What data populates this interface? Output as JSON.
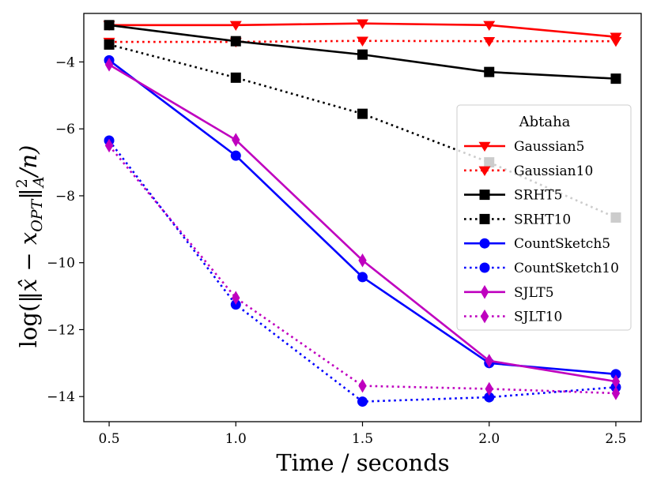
{
  "chart_data": {
    "type": "line",
    "title": "",
    "xlabel": "Time / seconds",
    "ylabel": "log(‖x̂ − x_OPT‖²_A / n)",
    "ylabel_parts": {
      "prefix": "log(‖",
      "xhat": "x̂",
      "minus": " − ",
      "x": "x",
      "sub": "OPT",
      "bar": "‖",
      "sup": "2",
      "subA": "A",
      "suffix": "/n)"
    },
    "x": [
      0.5,
      1.0,
      1.5,
      2.0,
      2.5
    ],
    "xlim": [
      0.4,
      2.6
    ],
    "ylim": [
      -14.75,
      -2.55
    ],
    "xticks": [
      0.5,
      1.0,
      1.5,
      2.0,
      2.5
    ],
    "xtick_labels": [
      "0.5",
      "1.0",
      "1.5",
      "2.0",
      "2.5"
    ],
    "yticks": [
      -4,
      -6,
      -8,
      -10,
      -12,
      -14
    ],
    "ytick_labels": [
      "−4",
      "−6",
      "−8",
      "−10",
      "−12",
      "−14"
    ],
    "legend": {
      "title": "Abtaha",
      "placement": "center-right"
    },
    "series": [
      {
        "name": "Gaussian5",
        "color": "#ff0000",
        "style": "solid",
        "marker": "triangle-down",
        "values": [
          -2.9,
          -2.9,
          -2.85,
          -2.9,
          -3.25
        ]
      },
      {
        "name": "Gaussian10",
        "color": "#ff0000",
        "style": "dotted",
        "marker": "triangle-down",
        "values": [
          -3.4,
          -3.4,
          -3.37,
          -3.38,
          -3.38
        ]
      },
      {
        "name": "SRHT5",
        "color": "#000000",
        "style": "solid",
        "marker": "square",
        "values": [
          -2.9,
          -3.38,
          -3.78,
          -4.3,
          -4.5
        ]
      },
      {
        "name": "SRHT10",
        "color": "#000000",
        "style": "dotted",
        "marker": "square",
        "values": [
          -3.48,
          -4.47,
          -5.55,
          -7.0,
          -8.65
        ]
      },
      {
        "name": "CountSketch5",
        "color": "#0000ff",
        "style": "solid",
        "marker": "circle",
        "values": [
          -3.95,
          -6.8,
          -10.43,
          -13.0,
          -13.33
        ]
      },
      {
        "name": "CountSketch10",
        "color": "#0000ff",
        "style": "dotted",
        "marker": "circle",
        "values": [
          -6.35,
          -11.25,
          -14.15,
          -14.02,
          -13.72
        ]
      },
      {
        "name": "SJLT5",
        "color": "#bf00bf",
        "style": "solid",
        "marker": "diamond",
        "values": [
          -4.08,
          -6.33,
          -9.93,
          -12.93,
          -13.55
        ]
      },
      {
        "name": "SJLT10",
        "color": "#bf00bf",
        "style": "dotted",
        "marker": "diamond",
        "values": [
          -6.5,
          -11.05,
          -13.68,
          -13.77,
          -13.9
        ]
      }
    ]
  }
}
